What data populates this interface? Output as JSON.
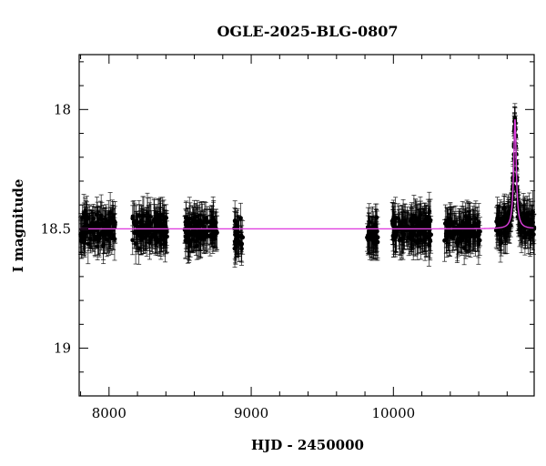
{
  "chart_data": {
    "type": "scatter",
    "title": "OGLE-2025-BLG-0807",
    "xlabel": "HJD - 2450000",
    "ylabel": "I magnitude",
    "xlim": [
      7790,
      10990
    ],
    "ylim": [
      19.2,
      17.77
    ],
    "y_inverted": true,
    "x_ticks": [
      8000,
      9000,
      10000
    ],
    "y_ticks": [
      18,
      18.5,
      19
    ],
    "x_tick_labels": [
      "8000",
      "9000",
      "10000"
    ],
    "y_tick_labels": [
      "18",
      "18.5",
      "19"
    ],
    "grid": false,
    "colors": {
      "points": "#000000",
      "error_bars": "#000000",
      "model": "#e040e0",
      "axes": "#000000"
    },
    "baseline_magnitude": 18.5,
    "typical_error": 0.075,
    "observing_seasons": [
      {
        "start": 7800,
        "end": 8045,
        "mean_mag": 18.5
      },
      {
        "start": 8165,
        "end": 8410,
        "mean_mag": 18.5
      },
      {
        "start": 8530,
        "end": 8760,
        "mean_mag": 18.5
      },
      {
        "start": 8880,
        "end": 8940,
        "mean_mag": 18.53
      },
      {
        "start": 9815,
        "end": 9890,
        "mean_mag": 18.52
      },
      {
        "start": 9985,
        "end": 10265,
        "mean_mag": 18.5
      },
      {
        "start": 10360,
        "end": 10610,
        "mean_mag": 18.51
      },
      {
        "start": 10720,
        "end": 10990,
        "mean_mag": 18.5
      }
    ],
    "event": {
      "t0": 10855,
      "peak_mag": 18.04,
      "tE": 22
    },
    "model": {
      "name": "",
      "x": [
        7790,
        10700,
        10780,
        10810,
        10825,
        10835,
        10843,
        10850,
        10855,
        10860,
        10867,
        10875,
        10885,
        10900,
        10930,
        10990
      ],
      "y": [
        18.5,
        18.5,
        18.49,
        18.46,
        18.41,
        18.33,
        18.22,
        18.1,
        18.04,
        18.1,
        18.22,
        18.33,
        18.41,
        18.46,
        18.49,
        18.5
      ]
    }
  }
}
